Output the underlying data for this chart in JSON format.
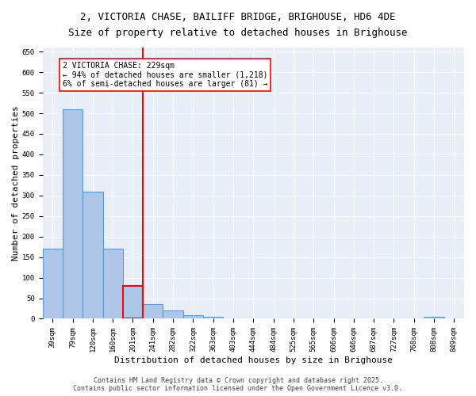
{
  "title_line1": "2, VICTORIA CHASE, BAILIFF BRIDGE, BRIGHOUSE, HD6 4DE",
  "title_line2": "Size of property relative to detached houses in Brighouse",
  "xlabel": "Distribution of detached houses by size in Brighouse",
  "ylabel": "Number of detached properties",
  "categories": [
    "39sqm",
    "79sqm",
    "120sqm",
    "160sqm",
    "201sqm",
    "241sqm",
    "282sqm",
    "322sqm",
    "363sqm",
    "403sqm",
    "444sqm",
    "484sqm",
    "525sqm",
    "565sqm",
    "606sqm",
    "646sqm",
    "687sqm",
    "727sqm",
    "768sqm",
    "808sqm",
    "849sqm"
  ],
  "values": [
    170,
    510,
    310,
    170,
    80,
    35,
    20,
    8,
    5,
    0,
    0,
    0,
    0,
    0,
    0,
    0,
    0,
    0,
    0,
    5,
    0
  ],
  "bar_color": "#aec6e8",
  "bar_edge_color": "#5b9bd5",
  "highlight_bar_index": 4,
  "highlight_bar_edge_color": "red",
  "vline_x": 4.5,
  "vline_color": "red",
  "annotation_text": "2 VICTORIA CHASE: 229sqm\n← 94% of detached houses are smaller (1,218)\n6% of semi-detached houses are larger (81) →",
  "annotation_box_color": "white",
  "annotation_box_edge_color": "red",
  "ylim": [
    0,
    660
  ],
  "yticks": [
    0,
    50,
    100,
    150,
    200,
    250,
    300,
    350,
    400,
    450,
    500,
    550,
    600,
    650
  ],
  "background_color": "#e8eef7",
  "grid_color": "white",
  "footer_text": "Contains HM Land Registry data © Crown copyright and database right 2025.\nContains public sector information licensed under the Open Government Licence v3.0.",
  "title_fontsize": 9,
  "axis_label_fontsize": 8,
  "tick_fontsize": 6.5,
  "annotation_fontsize": 7,
  "footer_fontsize": 6,
  "ylabel_fontsize": 8
}
